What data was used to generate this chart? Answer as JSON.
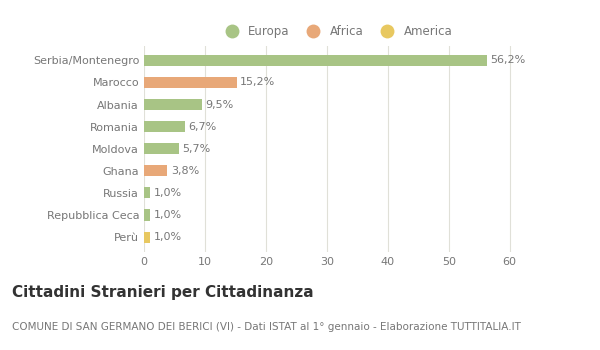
{
  "categories": [
    "Serbia/Montenegro",
    "Marocco",
    "Albania",
    "Romania",
    "Moldova",
    "Ghana",
    "Russia",
    "Repubblica Ceca",
    "Perù"
  ],
  "values": [
    56.2,
    15.2,
    9.5,
    6.7,
    5.7,
    3.8,
    1.0,
    1.0,
    1.0
  ],
  "labels": [
    "56,2%",
    "15,2%",
    "9,5%",
    "6,7%",
    "5,7%",
    "3,8%",
    "1,0%",
    "1,0%",
    "1,0%"
  ],
  "colors": [
    "#a8c485",
    "#e8a878",
    "#a8c485",
    "#a8c485",
    "#a8c485",
    "#e8a878",
    "#a8c485",
    "#a8c485",
    "#e8c860"
  ],
  "legend_labels": [
    "Europa",
    "Africa",
    "America"
  ],
  "legend_colors": [
    "#a8c485",
    "#e8a878",
    "#e8c860"
  ],
  "title": "Cittadini Stranieri per Cittadinanza",
  "subtitle": "COMUNE DI SAN GERMANO DEI BERICI (VI) - Dati ISTAT al 1° gennaio - Elaborazione TUTTITALIA.IT",
  "xlim": [
    0,
    63
  ],
  "xticks": [
    0,
    10,
    20,
    30,
    40,
    50,
    60
  ],
  "background_color": "#ffffff",
  "grid_color": "#e0e0d8",
  "bar_height": 0.5,
  "title_fontsize": 11,
  "subtitle_fontsize": 7.5,
  "label_fontsize": 8,
  "tick_fontsize": 8,
  "legend_fontsize": 8.5,
  "text_color": "#777777"
}
